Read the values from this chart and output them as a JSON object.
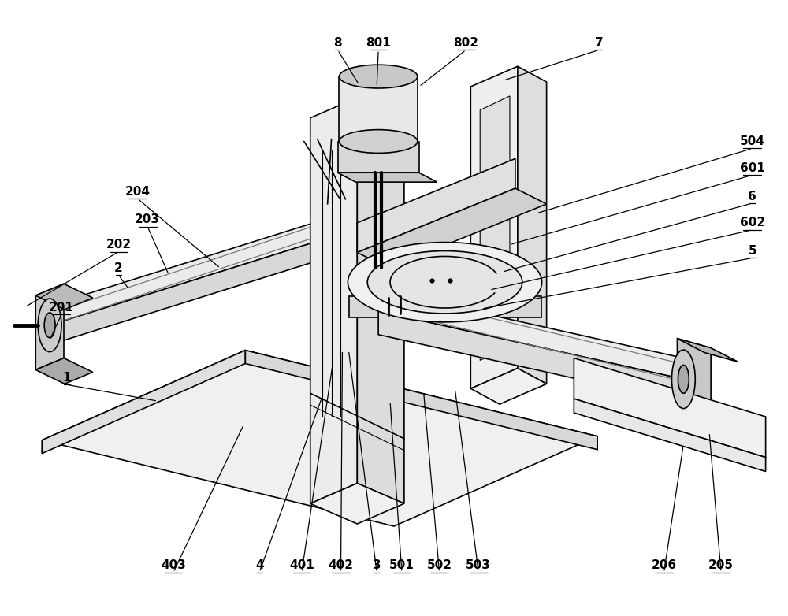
{
  "bg_color": "#ffffff",
  "line_color": "#000000",
  "line_width": 1.2,
  "fig_width": 10.0,
  "fig_height": 7.82,
  "bottom_labels": [
    [
      "403",
      218,
      720,
      308,
      540
    ],
    [
      "4",
      328,
      720,
      408,
      505
    ],
    [
      "401",
      382,
      720,
      422,
      460
    ],
    [
      "402",
      432,
      720,
      434,
      445
    ],
    [
      "3",
      478,
      720,
      442,
      445
    ],
    [
      "501",
      510,
      720,
      495,
      510
    ],
    [
      "502",
      558,
      720,
      538,
      500
    ],
    [
      "503",
      608,
      720,
      578,
      495
    ],
    [
      "206",
      845,
      720,
      870,
      565
    ],
    [
      "205",
      918,
      720,
      903,
      550
    ]
  ],
  "top_labels": [
    [
      "8",
      428,
      52,
      455,
      105
    ],
    [
      "801",
      480,
      52,
      478,
      108
    ],
    [
      "802",
      592,
      52,
      532,
      108
    ],
    [
      "7",
      762,
      52,
      640,
      100
    ]
  ],
  "right_labels": [
    [
      "504",
      958,
      178,
      682,
      270
    ],
    [
      "601",
      958,
      212,
      648,
      310
    ],
    [
      "6",
      958,
      248,
      638,
      345
    ],
    [
      "602",
      958,
      282,
      622,
      368
    ],
    [
      "5",
      958,
      318,
      612,
      392
    ]
  ],
  "left_labels": [
    [
      "204",
      172,
      242,
      278,
      340
    ],
    [
      "203",
      185,
      278,
      212,
      348
    ],
    [
      "202",
      148,
      310,
      28,
      390
    ],
    [
      "2",
      148,
      340,
      162,
      368
    ],
    [
      "201",
      75,
      390,
      60,
      432
    ],
    [
      "1",
      82,
      480,
      198,
      510
    ]
  ]
}
